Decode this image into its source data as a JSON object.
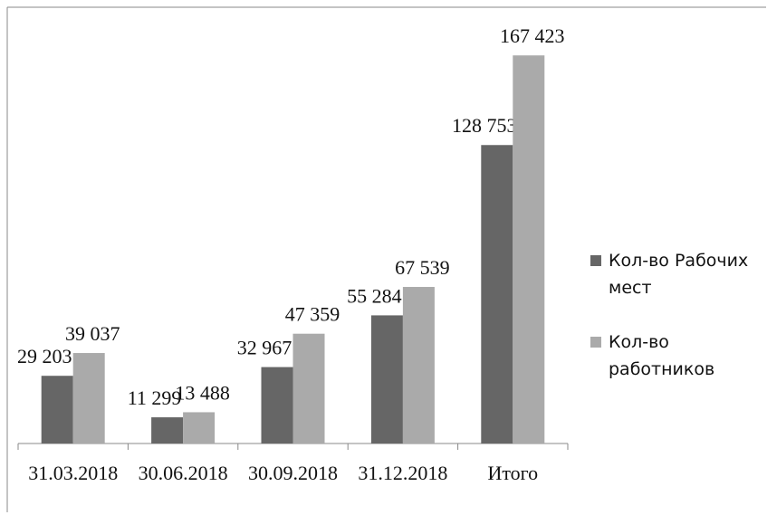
{
  "chart_data": {
    "type": "bar",
    "categories": [
      "31.03.2018",
      "30.06.2018",
      "30.09.2018",
      "31.12.2018",
      "Итого"
    ],
    "series": [
      {
        "name": "Кол-во Рабочих мест",
        "color": "#666666",
        "values": [
          29203,
          11299,
          32967,
          55284,
          128753
        ],
        "value_labels": [
          "29 203",
          "11 299",
          "32 967",
          "55 284",
          "128 753"
        ]
      },
      {
        "name": "Кол-во работников",
        "color": "#aaaaaa",
        "values": [
          39037,
          13488,
          47359,
          67539,
          167423
        ],
        "value_labels": [
          "39 037",
          "13 488",
          "47 359",
          "67 539",
          "167 423"
        ]
      }
    ],
    "ylim": [
      0,
      180000
    ],
    "legend": "right"
  }
}
